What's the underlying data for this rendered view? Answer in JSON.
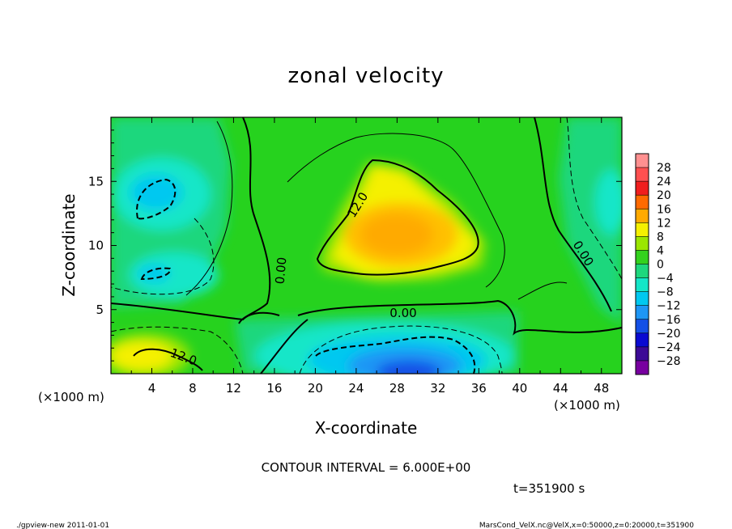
{
  "chart_data": {
    "type": "heatmap",
    "title": "zonal velocity",
    "xlabel": "X-coordinate",
    "ylabel": "Z-coordinate",
    "x_unit": "(×1000 m)",
    "y_unit": "(×1000 m)",
    "xlim": [
      0,
      50
    ],
    "ylim": [
      0,
      20
    ],
    "x_ticks": [
      "4",
      "8",
      "12",
      "16",
      "20",
      "24",
      "28",
      "32",
      "36",
      "40",
      "44",
      "48"
    ],
    "y_ticks": [
      "5",
      "10",
      "15"
    ],
    "colorbar": {
      "levels": [
        "28",
        "24",
        "20",
        "16",
        "12",
        "8",
        "4",
        "0",
        "−4",
        "−8",
        "−12",
        "−16",
        "−20",
        "−24",
        "−28"
      ],
      "colors": [
        "#ff9090",
        "#ff5050",
        "#f01e1e",
        "#ff6a00",
        "#ffaa00",
        "#f5f000",
        "#9be600",
        "#33d21e",
        "#1ed77d",
        "#14e6c8",
        "#00c8f0",
        "#1e96f5",
        "#1450e6",
        "#0a0ad2",
        "#3c0a96",
        "#7800a0"
      ]
    },
    "contour_labels": [
      "12.0",
      "0.00",
      "0.00",
      "0.00",
      "12.0"
    ],
    "contour_interval": "CONTOUR INTERVAL = 6.000E+00",
    "time_label": "t=351900 s",
    "grid": false,
    "legend": "right"
  },
  "footer": {
    "left": "./gpview-new   2011-01-01",
    "right": "MarsCond_VelX.nc@VelX,x=0:50000,z=0:20000,t=351900"
  }
}
